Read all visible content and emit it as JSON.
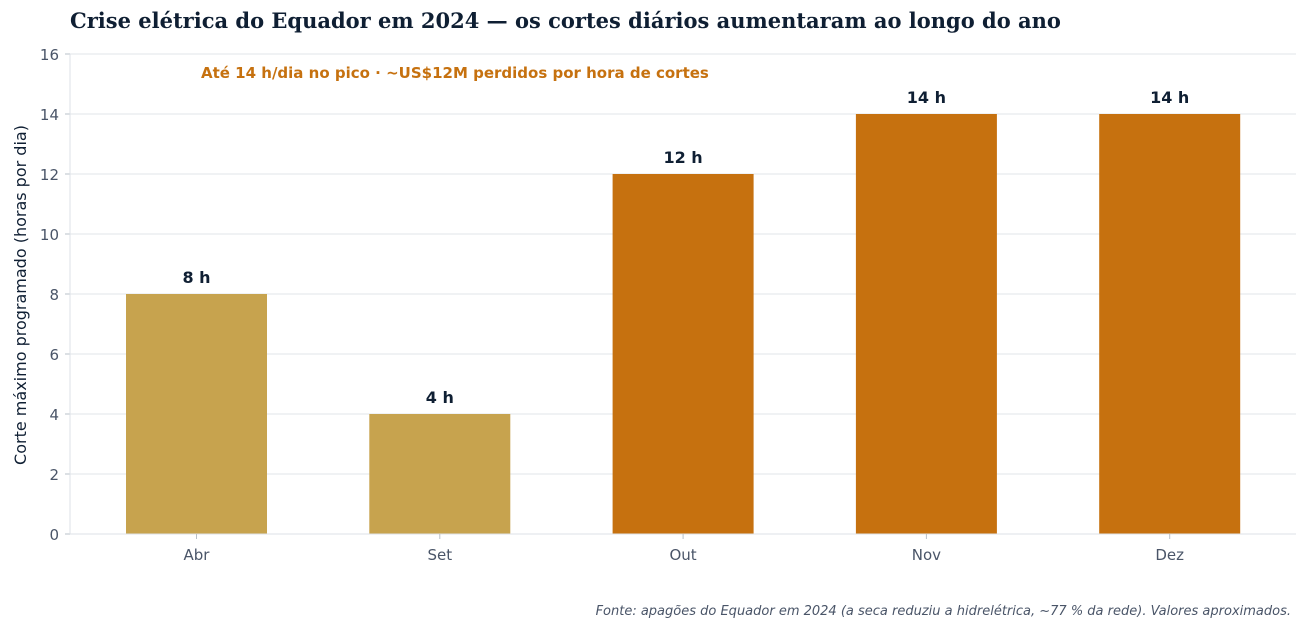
{
  "chart_data": {
    "type": "bar",
    "title": "Crise elétrica do Equador em 2024 — os cortes diários aumentaram ao longo do ano",
    "subtitle": "Até 14 h/dia no pico · ~US$12M perdidos por hora de cortes",
    "ylabel": "Corte máximo programado (horas por dia)",
    "xlabel": "",
    "ylim": [
      0,
      16
    ],
    "yticks": [
      "0",
      "2",
      "4",
      "6",
      "8",
      "10",
      "12",
      "14",
      "16"
    ],
    "grid": true,
    "categories": [
      "Abr",
      "Set",
      "Out",
      "Nov",
      "Dez"
    ],
    "values": [
      8,
      4,
      12,
      14,
      14
    ],
    "data_labels": [
      "8 h",
      "4 h",
      "12 h",
      "14 h",
      "14 h"
    ],
    "colors": [
      "#c7a34e",
      "#c7a34e",
      "#c6710f",
      "#c6710f",
      "#c6710f"
    ]
  },
  "source_note": "Fonte: apagões do Equador em 2024 (a seca reduziu a hidrelétrica, ~77 % da rede). Valores aproximados.",
  "palette": {
    "text_dark": "#0f1f33",
    "accent": "#c6710f",
    "tick_text": "#4a5568",
    "grid": "#e2e6ea"
  }
}
